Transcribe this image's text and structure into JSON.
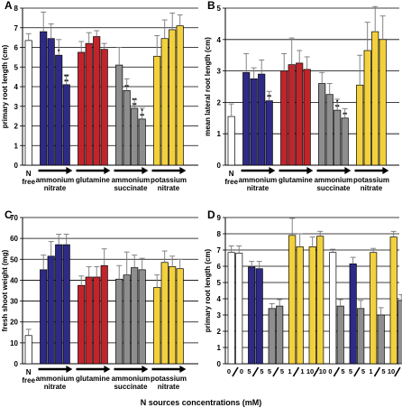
{
  "figure": {
    "bottom_label": "N sources concentrations (mM)"
  },
  "colors": {
    "none": "#ffffff",
    "ammonium_nitrate": "#2e2a86",
    "glutamine": "#c1252b",
    "ammonium_succinate": "#8e8e8e",
    "potassium_nitrate": "#f3d13d"
  },
  "chart_data": [
    {
      "panel": "A",
      "type": "bar",
      "ylabel": "primary root length (cm)",
      "ylim": [
        0,
        8
      ],
      "yticks": [
        0,
        1,
        2,
        3,
        4,
        5,
        6,
        7,
        8
      ],
      "grid": true,
      "group_labels": [
        [
          "N",
          "free"
        ],
        [
          "ammonium",
          "nitrate"
        ],
        [
          "glutamine"
        ],
        [
          "ammonium",
          "succinate"
        ],
        [
          "potassium",
          "nitrate"
        ]
      ],
      "gradient_arrows": true,
      "groups": [
        {
          "color_key": "none",
          "values": [
            6.35
          ],
          "errors": [
            0.35
          ],
          "sig": [
            ""
          ]
        },
        {
          "color_key": "ammonium_nitrate",
          "values": [
            6.8,
            6.45,
            5.6,
            4.1
          ],
          "errors": [
            1.0,
            0.75,
            0.8,
            0.5
          ],
          "sig": [
            "",
            "",
            "*",
            "**\n**"
          ]
        },
        {
          "color_key": "glutamine",
          "values": [
            5.75,
            6.2,
            6.55,
            5.9
          ],
          "errors": [
            0.55,
            0.55,
            0.3,
            0.3
          ],
          "sig": [
            "",
            "",
            "",
            ""
          ]
        },
        {
          "color_key": "ammonium_succinate",
          "values": [
            5.1,
            3.8,
            2.9,
            2.35
          ],
          "errors": [
            0.9,
            0.6,
            0.45,
            0.55
          ],
          "sig": [
            "",
            "**",
            "**\n**",
            "*\n**"
          ]
        },
        {
          "color_key": "potassium_nitrate",
          "values": [
            5.55,
            6.45,
            6.9,
            7.1
          ],
          "errors": [
            1.05,
            0.95,
            0.85,
            0.55
          ],
          "sig": [
            "",
            "",
            "",
            ""
          ]
        }
      ]
    },
    {
      "panel": "B",
      "type": "bar",
      "ylabel": "mean lateral root length (cm)",
      "ylim": [
        0,
        5
      ],
      "yticks": [
        0,
        1,
        2,
        3,
        4,
        5
      ],
      "grid": true,
      "group_labels": [
        [
          "N",
          "free"
        ],
        [
          "ammonium",
          "nitrate"
        ],
        [
          "glutamine"
        ],
        [
          "ammonium",
          "succinate"
        ],
        [
          "potassium",
          "nitrate"
        ]
      ],
      "gradient_arrows": true,
      "groups": [
        {
          "color_key": "none",
          "values": [
            1.55
          ],
          "errors": [
            0.4
          ],
          "sig": [
            ""
          ]
        },
        {
          "color_key": "ammonium_nitrate",
          "values": [
            2.95,
            2.75,
            2.9,
            2.05
          ],
          "errors": [
            0.6,
            0.35,
            0.45,
            0.3
          ],
          "sig": [
            "",
            "",
            "",
            "**"
          ]
        },
        {
          "color_key": "glutamine",
          "values": [
            3.0,
            3.2,
            3.25,
            3.05
          ],
          "errors": [
            0.55,
            0.85,
            0.4,
            0.4
          ],
          "sig": [
            "",
            "",
            "",
            ""
          ]
        },
        {
          "color_key": "ammonium_succinate",
          "values": [
            2.6,
            2.25,
            1.75,
            1.5
          ],
          "errors": [
            0.35,
            0.35,
            0.35,
            0.3
          ],
          "sig": [
            "",
            "",
            "*\n**",
            "**"
          ]
        },
        {
          "color_key": "potassium_nitrate",
          "values": [
            2.55,
            3.65,
            4.25,
            4.0
          ],
          "errors": [
            0.95,
            0.9,
            0.8,
            0.75
          ],
          "sig": [
            "",
            "",
            "",
            ""
          ]
        }
      ]
    },
    {
      "panel": "C",
      "type": "bar",
      "ylabel": "fresh shoot weight (mg)",
      "ylim": [
        0,
        70
      ],
      "yticks": [
        0,
        10,
        20,
        30,
        40,
        50,
        60,
        70
      ],
      "grid": true,
      "group_labels": [
        [
          "N",
          "free"
        ],
        [
          "ammonium",
          "nitrate"
        ],
        [
          "glutamine"
        ],
        [
          "ammonium",
          "succinate"
        ],
        [
          "potassium",
          "nitrate"
        ]
      ],
      "gradient_arrows": true,
      "groups": [
        {
          "color_key": "none",
          "values": [
            13.5
          ],
          "errors": [
            3.0
          ],
          "sig": [
            ""
          ]
        },
        {
          "color_key": "ammonium_nitrate",
          "values": [
            45.0,
            51.5,
            57.0,
            57.0
          ],
          "errors": [
            7.0,
            7.0,
            5.0,
            5.0
          ],
          "sig": [
            "",
            "",
            "",
            ""
          ]
        },
        {
          "color_key": "glutamine",
          "values": [
            37.5,
            41.5,
            41.5,
            47.0
          ],
          "errors": [
            4.5,
            5.0,
            5.0,
            8.0
          ],
          "sig": [
            "",
            "",
            "",
            ""
          ]
        },
        {
          "color_key": "ammonium_succinate",
          "values": [
            40.5,
            42.5,
            46.0,
            45.0
          ],
          "errors": [
            6.5,
            11.0,
            6.0,
            5.5
          ],
          "sig": [
            "",
            "",
            "",
            ""
          ]
        },
        {
          "color_key": "potassium_nitrate",
          "values": [
            36.5,
            48.5,
            46.5,
            45.5
          ],
          "errors": [
            6.0,
            5.5,
            5.0,
            4.5
          ],
          "sig": [
            "",
            "",
            "",
            ""
          ]
        }
      ]
    },
    {
      "panel": "D",
      "type": "bar",
      "ylabel": "primary root length (cm)",
      "ylim": [
        0,
        9
      ],
      "yticks": [
        0,
        1,
        2,
        3,
        4,
        5,
        6,
        7,
        8,
        9
      ],
      "grid": true,
      "gradient_arrows": false,
      "pairs": [
        {
          "top": "0",
          "bottom": "0",
          "bars": [
            {
              "color_key": "none",
              "value": 6.85,
              "error": 0.4
            },
            {
              "color_key": "none",
              "value": 6.8,
              "error": 0.45
            }
          ]
        },
        {
          "top": "5",
          "bottom": "5",
          "bars": [
            {
              "color_key": "ammonium_nitrate",
              "value": 5.95,
              "error": 0.35
            },
            {
              "color_key": "ammonium_nitrate",
              "value": 5.85,
              "error": 0.45
            }
          ]
        },
        {
          "top": "5",
          "bottom": "5",
          "bars": [
            {
              "color_key": "ammonium_succinate",
              "value": 3.4,
              "error": 0.3
            },
            {
              "color_key": "ammonium_succinate",
              "value": 3.55,
              "error": 0.4
            }
          ]
        },
        {
          "top": "1",
          "bottom": "1",
          "bars": [
            {
              "color_key": "potassium_nitrate",
              "value": 7.9,
              "error": 1.05
            },
            {
              "color_key": "potassium_nitrate",
              "value": 7.2,
              "error": 0.8
            }
          ]
        },
        {
          "top": "10",
          "bottom": "10",
          "bars": [
            {
              "color_key": "potassium_nitrate",
              "value": 7.2,
              "error": 0.6
            },
            {
              "color_key": "potassium_nitrate",
              "value": 7.85,
              "error": 0.3
            }
          ]
        },
        {
          "top": "0",
          "bottom": "5",
          "bars": [
            {
              "color_key": "none",
              "value": 6.85,
              "error": 0.2
            },
            {
              "color_key": "ammonium_succinate",
              "value": 3.55,
              "error": 0.4
            }
          ]
        },
        {
          "top": "5",
          "bottom": "5",
          "bars": [
            {
              "color_key": "ammonium_nitrate",
              "value": 6.15,
              "error": 0.4
            },
            {
              "color_key": "ammonium_succinate",
              "value": 3.4,
              "error": 0.5
            }
          ]
        },
        {
          "top": "1",
          "bottom": "5",
          "bars": [
            {
              "color_key": "potassium_nitrate",
              "value": 6.85,
              "error": 0.25
            },
            {
              "color_key": "ammonium_succinate",
              "value": 3.0,
              "error": 0.45
            }
          ]
        },
        {
          "top": "10",
          "bottom": "5",
          "bars": [
            {
              "color_key": "potassium_nitrate",
              "value": 7.8,
              "error": 0.35
            },
            {
              "color_key": "ammonium_succinate",
              "value": 3.9,
              "error": 0.35
            }
          ]
        }
      ]
    }
  ]
}
